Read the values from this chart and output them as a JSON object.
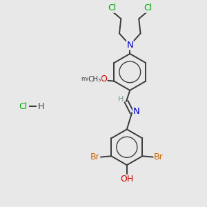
{
  "background_color": "#e8e8e8",
  "bond_color": "#3a3a3a",
  "bond_width": 1.4,
  "atom_colors": {
    "C": "#3a3a3a",
    "N": "#0000cc",
    "O": "#cc0000",
    "Br": "#cc6600",
    "Cl": "#00aa00",
    "H": "#7a9a9a"
  },
  "font_size": 8.5,
  "figsize": [
    3.0,
    3.0
  ],
  "dpi": 100,
  "xlim": [
    0,
    10
  ],
  "ylim": [
    0,
    10
  ]
}
